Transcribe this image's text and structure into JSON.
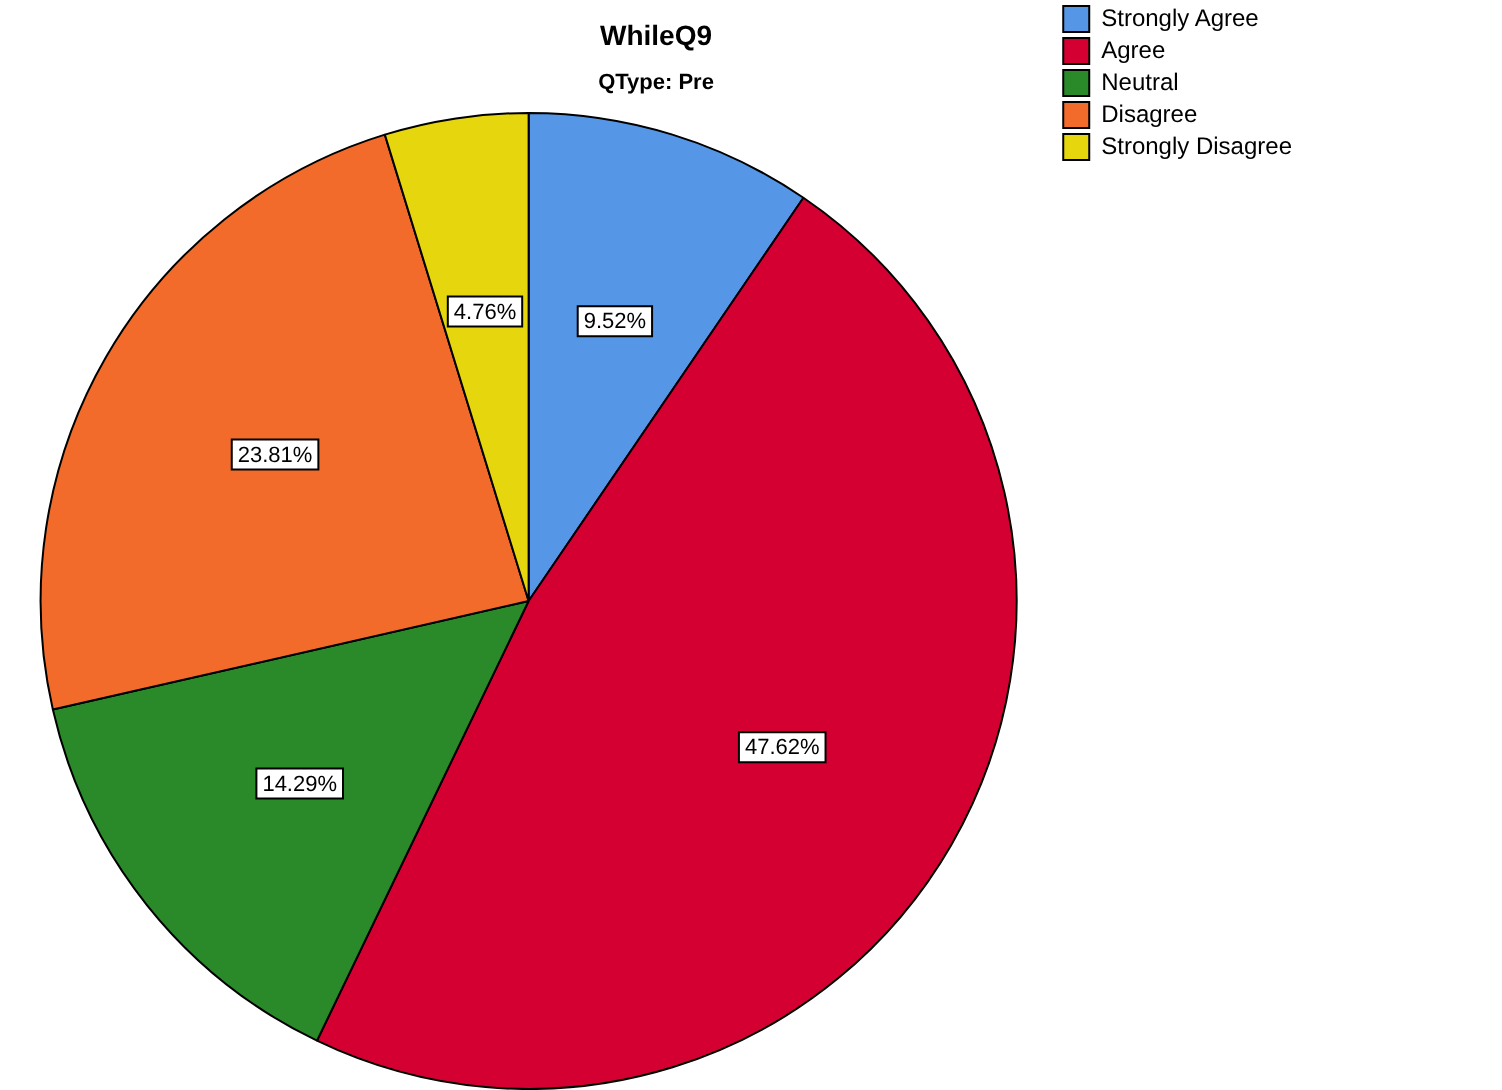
{
  "chart_data": {
    "type": "pie",
    "title": "WhileQ9",
    "subtitle": "QType: Pre",
    "categories": [
      "Strongly Agree",
      "Agree",
      "Neutral",
      "Disagree",
      "Strongly Disagree"
    ],
    "values": [
      9.52,
      47.62,
      14.29,
      23.81,
      4.76
    ],
    "colors": [
      "#5597e6",
      "#d50032",
      "#2a8a2a",
      "#f26b2a",
      "#e6d60e"
    ],
    "value_labels": [
      "9.52%",
      "47.62%",
      "14.29%",
      "23.81%",
      "4.76%"
    ],
    "legend": "top right"
  }
}
